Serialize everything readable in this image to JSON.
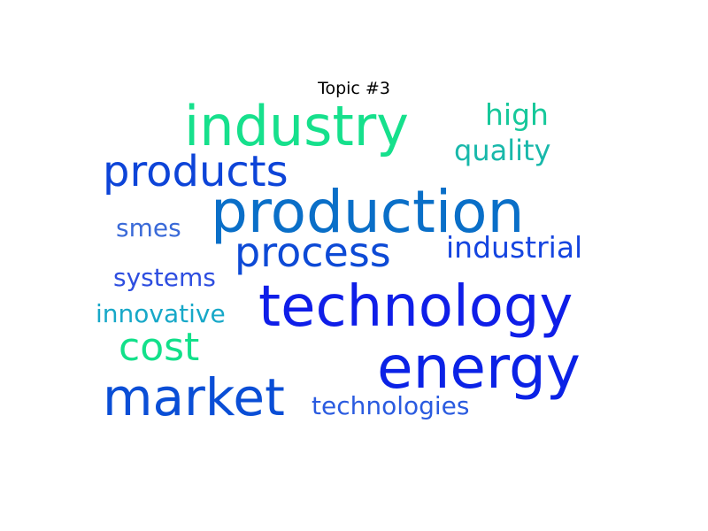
{
  "title": "Topic #3",
  "words": [
    {
      "text": "production",
      "color": "#0a6fc8"
    },
    {
      "text": "technology",
      "color": "#0f1ee8"
    },
    {
      "text": "industry",
      "color": "#16e08c"
    },
    {
      "text": "energy",
      "color": "#0b22e6"
    },
    {
      "text": "market",
      "color": "#0a4ed6"
    },
    {
      "text": "products",
      "color": "#0d44d8"
    },
    {
      "text": "process",
      "color": "#0d4ad6"
    },
    {
      "text": "cost",
      "color": "#12e08a"
    },
    {
      "text": "industrial",
      "color": "#1545e0"
    },
    {
      "text": "technologies",
      "color": "#2a5be0"
    },
    {
      "text": "high",
      "color": "#16c89a"
    },
    {
      "text": "quality",
      "color": "#18b8aa"
    },
    {
      "text": "innovative",
      "color": "#17a8c8"
    },
    {
      "text": "systems",
      "color": "#2e4ee0"
    },
    {
      "text": "smes",
      "color": "#3a6ad8"
    }
  ]
}
